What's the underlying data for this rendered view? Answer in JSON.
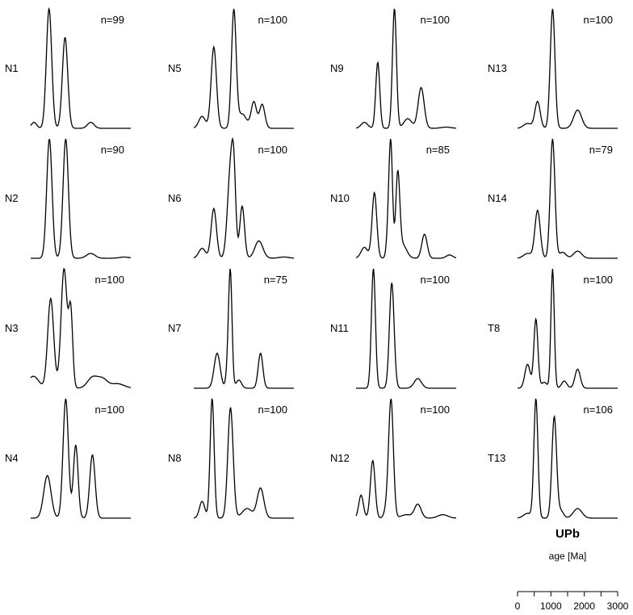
{
  "chart_data": {
    "type": "line",
    "title": "UPb",
    "xlabel": "age [Ma]",
    "x_ticks": [
      "0",
      "1000",
      "2000",
      "3000"
    ],
    "xlim": [
      0,
      3000
    ],
    "panels": [
      {
        "name": "N1",
        "n": "n=99",
        "peaks": [
          [
            100,
            80,
            0.05
          ],
          [
            550,
            80,
            1.0
          ],
          [
            1030,
            80,
            0.76
          ],
          [
            1800,
            100,
            0.05
          ]
        ]
      },
      {
        "name": "N2",
        "n": "n=90",
        "peaks": [
          [
            560,
            80,
            1.0
          ],
          [
            1050,
            80,
            1.0
          ],
          [
            1800,
            130,
            0.04
          ],
          [
            2800,
            150,
            0.01
          ]
        ]
      },
      {
        "name": "N3",
        "n": "n=100",
        "peaks": [
          [
            80,
            160,
            0.08
          ],
          [
            600,
            90,
            0.6
          ],
          [
            1000,
            90,
            0.8
          ],
          [
            1200,
            60,
            0.5
          ],
          [
            1850,
            150,
            0.07
          ],
          [
            2150,
            150,
            0.06
          ],
          [
            2600,
            200,
            0.03
          ]
        ]
      },
      {
        "name": "N4",
        "n": "n=100",
        "peaks": [
          [
            500,
            110,
            0.35
          ],
          [
            1050,
            80,
            0.98
          ],
          [
            1350,
            70,
            0.6
          ],
          [
            1850,
            80,
            0.52
          ]
        ]
      },
      {
        "name": "N5",
        "n": "n=100",
        "peaks": [
          [
            250,
            100,
            0.1
          ],
          [
            600,
            80,
            0.68
          ],
          [
            1200,
            70,
            0.98
          ],
          [
            1450,
            130,
            0.12
          ],
          [
            1800,
            80,
            0.22
          ],
          [
            2050,
            80,
            0.2
          ]
        ]
      },
      {
        "name": "N6",
        "n": "n=100",
        "peaks": [
          [
            250,
            100,
            0.08
          ],
          [
            600,
            80,
            0.4
          ],
          [
            1100,
            90,
            0.7
          ],
          [
            1200,
            60,
            0.5
          ],
          [
            1450,
            70,
            0.42
          ],
          [
            1950,
            120,
            0.14
          ],
          [
            2700,
            150,
            0.01
          ]
        ]
      },
      {
        "name": "N7",
        "n": "n=75",
        "peaks": [
          [
            700,
            90,
            0.3
          ],
          [
            1050,
            60,
            0.3
          ],
          [
            1100,
            50,
            0.8
          ],
          [
            1350,
            80,
            0.07
          ],
          [
            2000,
            70,
            0.3
          ]
        ]
      },
      {
        "name": "N8",
        "n": "n=100",
        "peaks": [
          [
            250,
            80,
            0.14
          ],
          [
            550,
            60,
            1.0
          ],
          [
            1100,
            80,
            0.92
          ],
          [
            1600,
            150,
            0.08
          ],
          [
            2000,
            100,
            0.25
          ]
        ]
      },
      {
        "name": "N9",
        "n": "n=100",
        "peaks": [
          [
            250,
            100,
            0.05
          ],
          [
            650,
            60,
            0.55
          ],
          [
            1150,
            60,
            1.0
          ],
          [
            1550,
            120,
            0.08
          ],
          [
            1950,
            90,
            0.34
          ],
          [
            2700,
            150,
            0.01
          ]
        ]
      },
      {
        "name": "N10",
        "n": "n=85",
        "peaks": [
          [
            250,
            100,
            0.1
          ],
          [
            550,
            70,
            0.6
          ],
          [
            1000,
            60,
            0.5
          ],
          [
            1050,
            50,
            0.7
          ],
          [
            1250,
            60,
            0.75
          ],
          [
            1400,
            120,
            0.12
          ],
          [
            2050,
            80,
            0.22
          ],
          [
            2800,
            100,
            0.03
          ]
        ]
      },
      {
        "name": "N11",
        "n": "n=100",
        "peaks": [
          [
            520,
            60,
            1.0
          ],
          [
            1070,
            70,
            0.88
          ],
          [
            1850,
            110,
            0.08
          ]
        ]
      },
      {
        "name": "N12",
        "n": "n=100",
        "peaks": [
          [
            150,
            70,
            0.2
          ],
          [
            500,
            70,
            0.5
          ],
          [
            950,
            80,
            0.12
          ],
          [
            1050,
            70,
            0.98
          ],
          [
            1500,
            150,
            0.03
          ],
          [
            1850,
            100,
            0.12
          ],
          [
            2600,
            150,
            0.03
          ]
        ]
      },
      {
        "name": "N13",
        "n": "n=100",
        "peaks": [
          [
            300,
            120,
            0.04
          ],
          [
            600,
            80,
            0.22
          ],
          [
            1050,
            70,
            0.98
          ],
          [
            1800,
            120,
            0.15
          ]
        ]
      },
      {
        "name": "N14",
        "n": "n=79",
        "peaks": [
          [
            300,
            120,
            0.04
          ],
          [
            600,
            80,
            0.4
          ],
          [
            1050,
            70,
            1.0
          ],
          [
            1350,
            100,
            0.05
          ],
          [
            1800,
            120,
            0.06
          ]
        ]
      },
      {
        "name": "T8",
        "n": "n=100",
        "peaks": [
          [
            300,
            80,
            0.2
          ],
          [
            550,
            60,
            0.58
          ],
          [
            800,
            80,
            0.05
          ],
          [
            1050,
            50,
            1.0
          ],
          [
            1400,
            80,
            0.06
          ],
          [
            1800,
            80,
            0.16
          ]
        ]
      },
      {
        "name": "T13",
        "n": "n=106",
        "peaks": [
          [
            300,
            120,
            0.04
          ],
          [
            550,
            60,
            1.0
          ],
          [
            1100,
            70,
            0.85
          ],
          [
            1300,
            80,
            0.06
          ],
          [
            1800,
            130,
            0.08
          ]
        ]
      }
    ]
  }
}
